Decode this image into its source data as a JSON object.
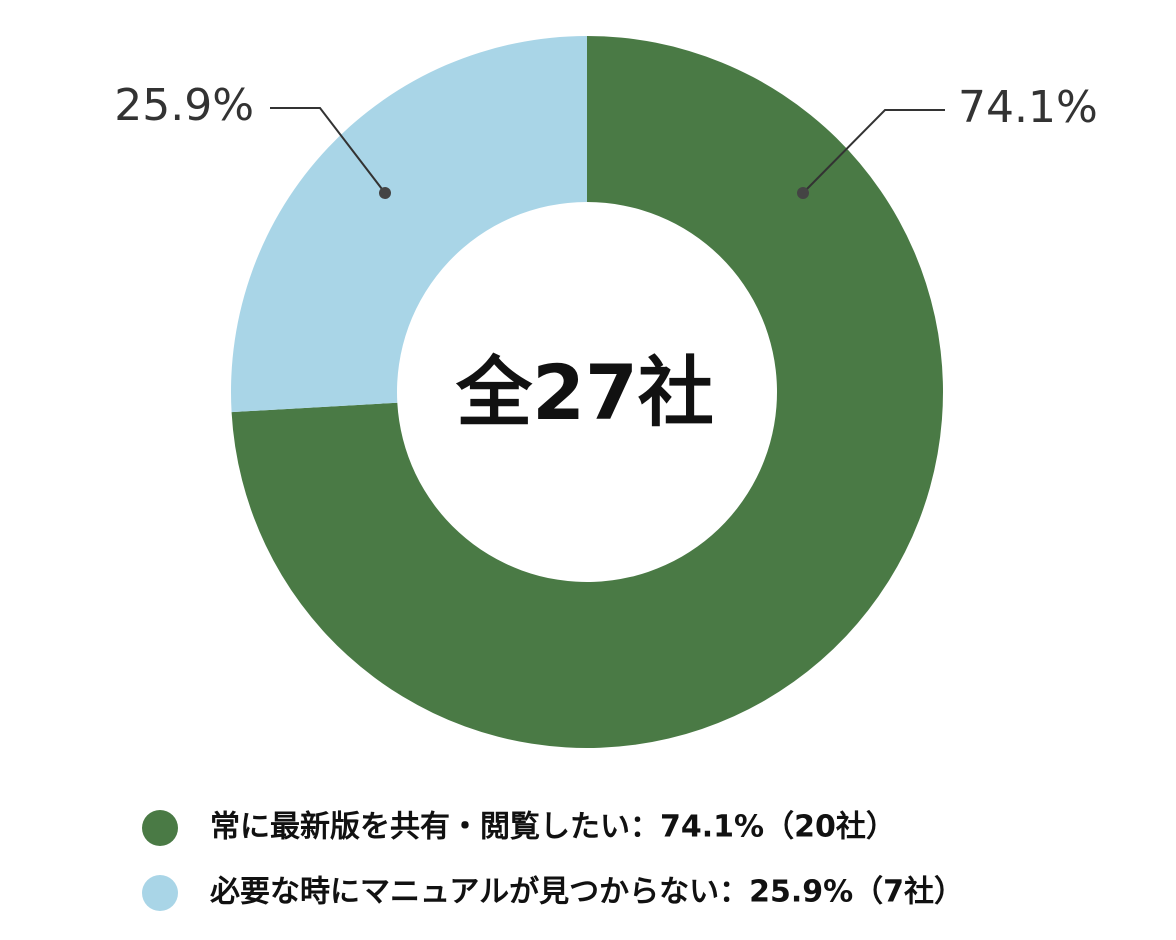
{
  "chart_data": {
    "type": "pie",
    "donut": true,
    "center_text": "全27社",
    "categories": [
      "常に最新版を共有・閲覧したい：74.1%（20社）",
      "必要な時にマニュアルが見つからない：25.9%（7社）"
    ],
    "values": [
      74.1,
      25.9
    ],
    "value_labels": [
      "74.1%",
      "25.9%"
    ],
    "colors": [
      "#4a7a45",
      "#a9d5e7"
    ]
  }
}
